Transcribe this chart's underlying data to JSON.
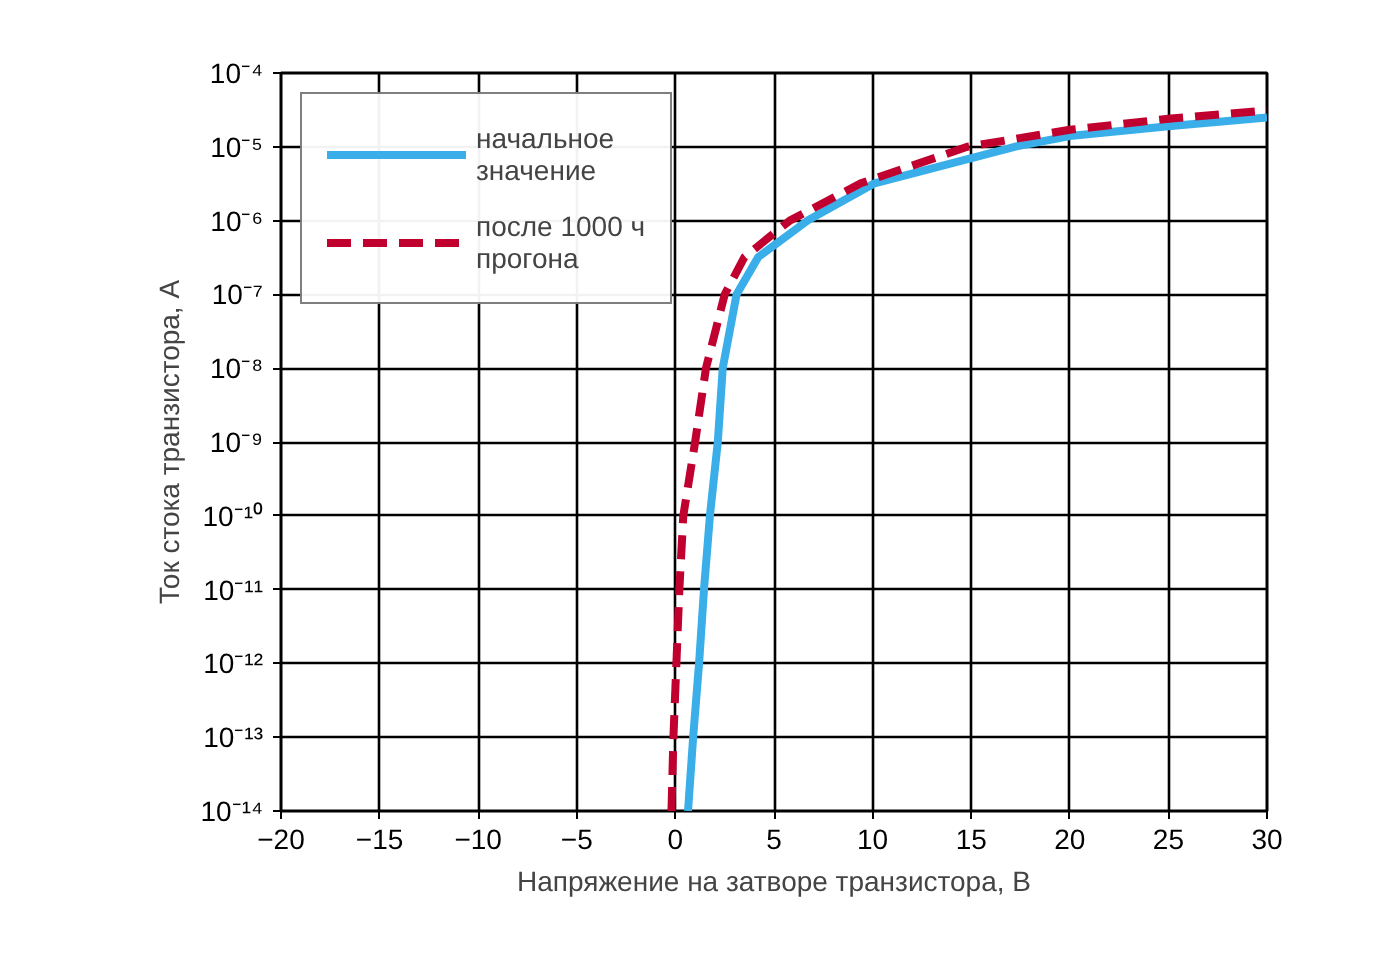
{
  "chart_data": {
    "type": "line",
    "xlabel": "Напряжение на затворе транзистора, В",
    "ylabel": "Ток стока транзистора, А",
    "log": "y",
    "xlim": [
      -20,
      30
    ],
    "xticks": [
      -20,
      -15,
      -10,
      -5,
      0,
      5,
      10,
      15,
      20,
      25,
      30
    ],
    "ylim": [
      1e-14,
      0.0001
    ],
    "yticks": [
      {
        "value": 1e-14,
        "label": "10⁻¹⁴"
      },
      {
        "value": 1e-13,
        "label": "10⁻¹³"
      },
      {
        "value": 1e-12,
        "label": "10⁻¹²"
      },
      {
        "value": 1e-11,
        "label": "10⁻¹¹"
      },
      {
        "value": 1e-10,
        "label": "10⁻¹⁰"
      },
      {
        "value": 1e-09,
        "label": "10⁻⁹"
      },
      {
        "value": 1e-08,
        "label": "10⁻⁸"
      },
      {
        "value": 1e-07,
        "label": "10⁻⁷"
      },
      {
        "value": 1e-06,
        "label": "10⁻⁶"
      },
      {
        "value": 1e-05,
        "label": "10⁻⁵"
      },
      {
        "value": 0.0001,
        "label": "10⁻⁴"
      }
    ],
    "grid": true,
    "legend": "top left",
    "series": [
      {
        "name": "начальное\nзначение",
        "color": "#3aaee8",
        "line_style": "solid",
        "x": [
          0.64,
          0.9,
          1.2,
          1.45,
          1.75,
          2.15,
          2.4,
          3.1,
          4.2,
          6.7,
          10.1,
          17.2,
          20,
          25,
          30
        ],
        "values": [
          1e-14,
          1e-13,
          1e-12,
          1e-11,
          1e-10,
          1e-09,
          1e-08,
          1e-07,
          3.2e-07,
          1e-06,
          3.2e-06,
          1e-05,
          1.4e-05,
          1.9e-05,
          2.5e-05
        ]
      },
      {
        "name": "после 1000 ч\nпрогона",
        "color": "#c0002f",
        "line_style": "dashed",
        "x": [
          -0.2,
          -0.1,
          0.05,
          0.2,
          0.4,
          1.0,
          1.55,
          2.5,
          3.5,
          5.8,
          9.4,
          14.8,
          20,
          25,
          30
        ],
        "values": [
          1e-14,
          1e-13,
          1e-12,
          1e-11,
          1e-10,
          1e-09,
          1e-08,
          1e-07,
          3.2e-07,
          1e-06,
          3.2e-06,
          1e-05,
          1.7e-05,
          2.4e-05,
          3.1e-05
        ]
      }
    ]
  }
}
